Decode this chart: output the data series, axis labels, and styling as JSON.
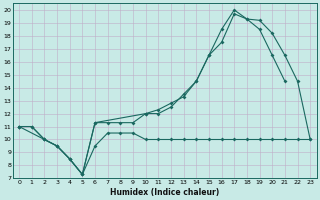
{
  "xlabel": "Humidex (Indice chaleur)",
  "bg_color": "#c8eae6",
  "grid_color": "#c0aec8",
  "line_color": "#1a6860",
  "xlim": [
    -0.5,
    23.5
  ],
  "ylim": [
    7,
    20.5
  ],
  "xticks": [
    0,
    1,
    2,
    3,
    4,
    5,
    6,
    7,
    8,
    9,
    10,
    11,
    12,
    13,
    14,
    15,
    16,
    17,
    18,
    19,
    20,
    21,
    22,
    23
  ],
  "yticks": [
    7,
    8,
    9,
    10,
    11,
    12,
    13,
    14,
    15,
    16,
    17,
    18,
    19,
    20
  ],
  "line1_x": [
    0,
    1,
    2,
    3,
    4,
    5,
    6,
    7,
    8,
    9,
    10,
    11,
    12,
    13,
    14,
    15,
    16,
    17,
    18,
    19,
    20,
    21,
    22,
    23
  ],
  "line1_y": [
    11,
    11,
    10,
    9.5,
    8.5,
    7.3,
    9.5,
    10.5,
    10.5,
    10.5,
    10,
    10,
    10,
    10,
    10,
    10,
    10,
    10,
    10,
    10,
    10,
    10,
    10,
    10
  ],
  "line2_x": [
    0,
    1,
    2,
    3,
    4,
    5,
    6,
    7,
    8,
    9,
    10,
    11,
    12,
    13,
    14,
    15,
    16,
    17,
    18,
    19,
    20,
    21
  ],
  "line2_y": [
    11,
    11,
    10,
    9.5,
    8.5,
    7.3,
    11.3,
    11.3,
    11.3,
    11.3,
    12,
    12,
    12.5,
    13.5,
    14.5,
    16.5,
    18.5,
    20,
    19.3,
    18.5,
    16.5,
    14.5
  ],
  "line3_x": [
    0,
    2,
    3,
    4,
    5,
    6,
    10,
    11,
    12,
    13,
    14,
    15,
    16,
    17,
    18,
    19,
    20,
    21,
    22,
    23
  ],
  "line3_y": [
    11,
    10,
    9.5,
    8.5,
    7.3,
    11.3,
    12,
    12.3,
    12.8,
    13.3,
    14.5,
    16.5,
    17.5,
    19.7,
    19.3,
    19.2,
    18.2,
    16.5,
    14.5,
    10
  ]
}
